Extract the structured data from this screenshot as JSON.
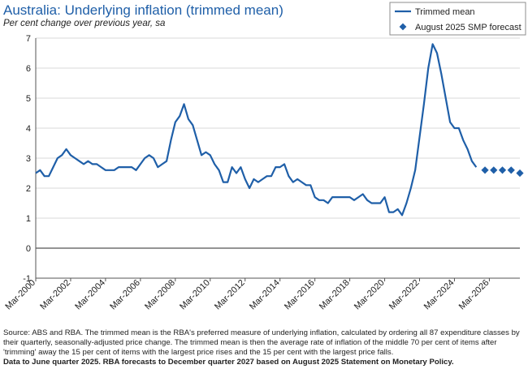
{
  "header": {
    "title": "Australia: Underlying inflation (trimmed mean)",
    "subtitle": "Per cent change over previous year, sa"
  },
  "footnote": {
    "source": "Source: ABS and RBA. The trimmed mean is the RBA's preferred measure of underlying inflation, calculated by ordering all 87 expenditure classes by their quarterly, seasonally-adjusted price change.  The trimmed mean is then the average rate of inflation of the middle 70 per cent of items after 'trimming' away the 15 per cent of items with the largest price rises and the 15 per cent with the largest price falls.",
    "data_note": "Data to June quarter 2025. RBA forecasts to December quarter 2027 based on August 2025 Statement on Monetary Policy."
  },
  "colors": {
    "accent": "#1f5fa8",
    "grid": "#d9d9d9",
    "text": "#222222"
  },
  "chart_data": {
    "type": "line",
    "title": "Australia: Underlying inflation (trimmed mean)",
    "ylabel": "Per cent change over previous year, sa",
    "ylim": [
      -1,
      7
    ],
    "yticks": [
      -1,
      0,
      1,
      2,
      3,
      4,
      5,
      6,
      7
    ],
    "x_range": [
      "Mar-2000",
      "Dec-2027"
    ],
    "xtick_labels": [
      "Mar-2000",
      "Mar-2002",
      "Mar-2004",
      "Mar-2006",
      "Mar-2008",
      "Mar-2010",
      "Mar-2012",
      "Mar-2014",
      "Mar-2016",
      "Mar-2018",
      "Mar-2020",
      "Mar-2022",
      "Mar-2024",
      "Mar-2026"
    ],
    "grid": "horizontal",
    "legend_position": "top-right",
    "series": [
      {
        "name": "Trimmed mean",
        "style": "line",
        "start": "Mar-2000",
        "frequency": "quarterly",
        "values": [
          2.5,
          2.6,
          2.4,
          2.4,
          2.7,
          3.0,
          3.1,
          3.3,
          3.1,
          3.0,
          2.9,
          2.8,
          2.9,
          2.8,
          2.8,
          2.7,
          2.6,
          2.6,
          2.6,
          2.7,
          2.7,
          2.7,
          2.7,
          2.6,
          2.8,
          3.0,
          3.1,
          3.0,
          2.7,
          2.8,
          2.9,
          3.6,
          4.2,
          4.4,
          4.8,
          4.3,
          4.1,
          3.6,
          3.1,
          3.2,
          3.1,
          2.8,
          2.6,
          2.2,
          2.2,
          2.7,
          2.5,
          2.7,
          2.3,
          2.0,
          2.3,
          2.2,
          2.3,
          2.4,
          2.4,
          2.7,
          2.7,
          2.8,
          2.4,
          2.2,
          2.3,
          2.2,
          2.1,
          2.1,
          1.7,
          1.6,
          1.6,
          1.5,
          1.7,
          1.7,
          1.7,
          1.7,
          1.7,
          1.6,
          1.7,
          1.8,
          1.6,
          1.5,
          1.5,
          1.5,
          1.7,
          1.2,
          1.2,
          1.3,
          1.1,
          1.5,
          2.0,
          2.6,
          3.7,
          4.8,
          6.0,
          6.8,
          6.5,
          5.8,
          5.0,
          4.2,
          4.0,
          4.0,
          3.6,
          3.3,
          2.9,
          2.7
        ]
      },
      {
        "name": "August 2025 SMP forecast",
        "style": "markers",
        "x": [
          "Dec-2025",
          "Jun-2026",
          "Dec-2026",
          "Jun-2027",
          "Dec-2027"
        ],
        "values": [
          2.6,
          2.6,
          2.6,
          2.6,
          2.5
        ]
      }
    ]
  }
}
